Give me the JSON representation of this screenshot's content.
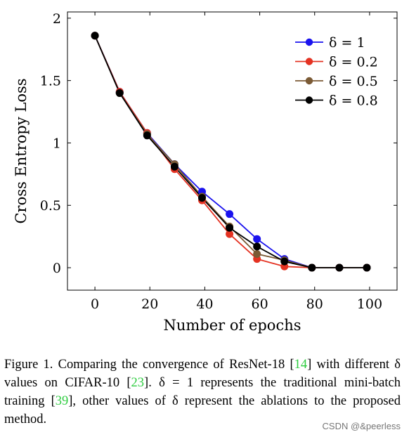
{
  "chart_data": {
    "type": "line",
    "xlabel": "Number of epochs",
    "ylabel": "Cross Entropy Loss",
    "xlim": [
      -10,
      110
    ],
    "ylim": [
      -0.18,
      2.05
    ],
    "xticks": [
      0,
      20,
      40,
      60,
      80,
      100
    ],
    "yticks": [
      0,
      0.5,
      1,
      1.5,
      2
    ],
    "xtick_labels": [
      "0",
      "20",
      "40",
      "60",
      "80",
      "100"
    ],
    "ytick_labels": [
      "0",
      "0.5",
      "1",
      "1.5",
      "2"
    ],
    "grid": false,
    "legend_position": "top-right",
    "x": [
      0,
      9,
      19,
      29,
      39,
      49,
      59,
      69,
      79,
      89,
      99
    ],
    "series": [
      {
        "name": "δ = 1",
        "color": "#1a12ee",
        "values": [
          1.86,
          1.41,
          1.08,
          0.83,
          0.61,
          0.43,
          0.23,
          0.07,
          0.0,
          0.0,
          0.0
        ]
      },
      {
        "name": "δ = 0.2",
        "color": "#e43222",
        "values": [
          1.86,
          1.41,
          1.08,
          0.79,
          0.54,
          0.27,
          0.07,
          0.01,
          0.0,
          0.0,
          0.0
        ]
      },
      {
        "name": "δ = 0.5",
        "color": "#7b5a35",
        "values": [
          1.86,
          1.4,
          1.07,
          0.83,
          0.57,
          0.33,
          0.11,
          0.06,
          0.0,
          0.0,
          0.0
        ]
      },
      {
        "name": "δ = 0.8",
        "color": "#000000",
        "values": [
          1.86,
          1.4,
          1.06,
          0.81,
          0.56,
          0.32,
          0.17,
          0.05,
          0.0,
          0.0,
          0.0
        ]
      }
    ]
  },
  "caption": {
    "parts": [
      {
        "text": "Figure 1. Comparing the convergence of ResNet-18 [",
        "cite": false
      },
      {
        "text": "14",
        "cite": true
      },
      {
        "text": "] with different δ values on CIFAR-10 [",
        "cite": false
      },
      {
        "text": "23",
        "cite": true
      },
      {
        "text": "]. δ = 1 represents the traditional mini-batch training [",
        "cite": false
      },
      {
        "text": "39",
        "cite": true
      },
      {
        "text": "], other values of δ represent the ablations to the proposed method.",
        "cite": false
      }
    ]
  },
  "watermark": "CSDN @&peerless"
}
